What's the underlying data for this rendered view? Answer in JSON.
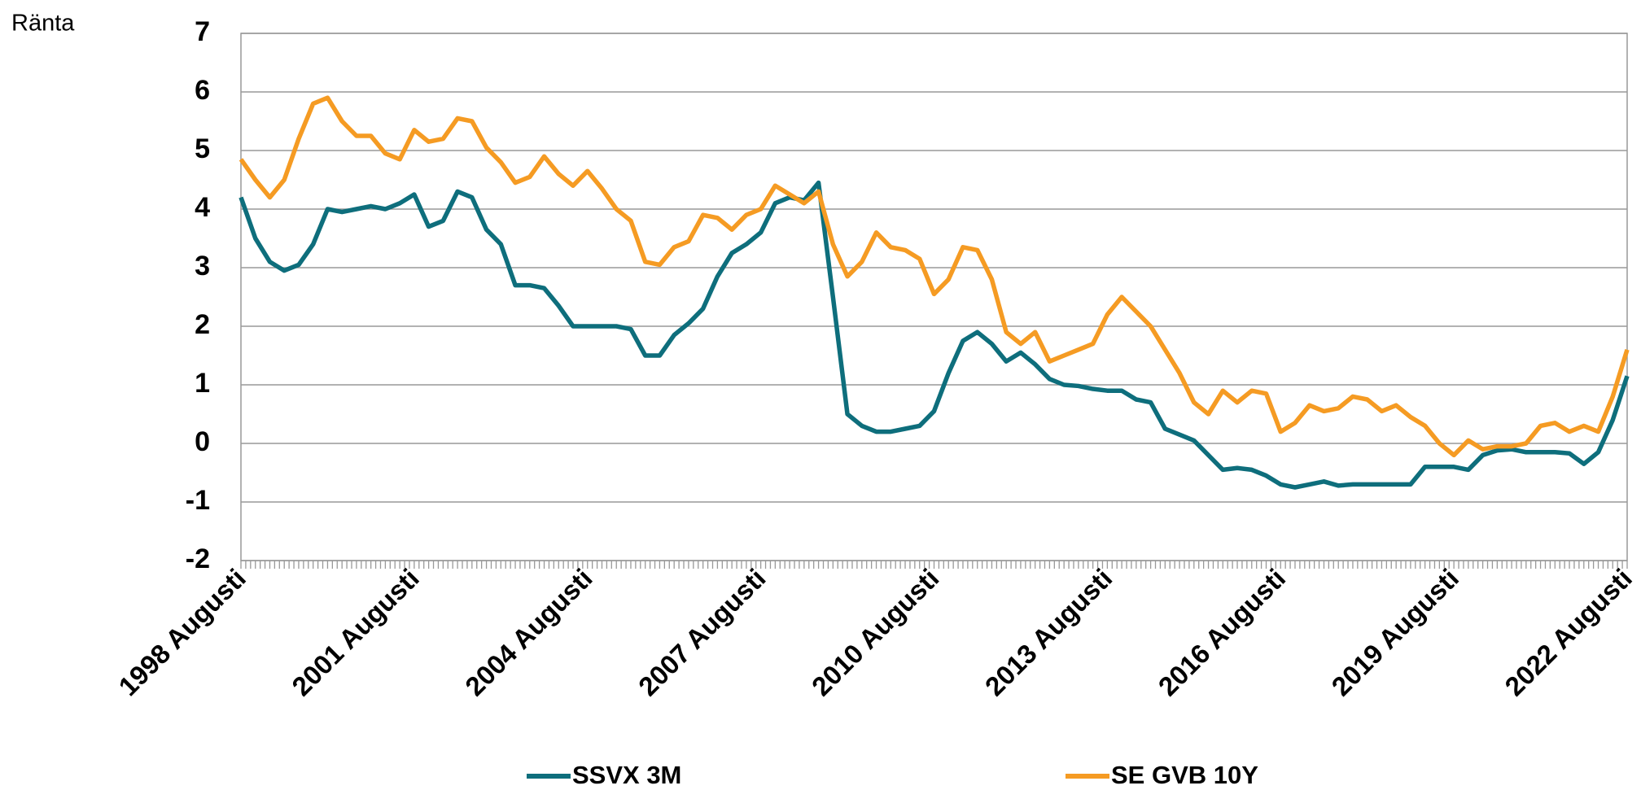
{
  "chart_data": {
    "type": "line",
    "y_label": "Ränta",
    "categories": [
      "1998 Augusti",
      null,
      null,
      null,
      null,
      null,
      null,
      null,
      null,
      null,
      null,
      null,
      "2001 Augusti",
      null,
      null,
      null,
      null,
      null,
      null,
      null,
      null,
      null,
      null,
      null,
      "2004 Augusti",
      null,
      null,
      null,
      null,
      null,
      null,
      null,
      null,
      null,
      null,
      null,
      "2007 Augusti",
      null,
      null,
      null,
      null,
      null,
      null,
      null,
      null,
      null,
      null,
      null,
      "2010 Augusti",
      null,
      null,
      null,
      null,
      null,
      null,
      null,
      null,
      null,
      null,
      null,
      "2013 Augusti",
      null,
      null,
      null,
      null,
      null,
      null,
      null,
      null,
      null,
      null,
      null,
      "2016 Augusti",
      null,
      null,
      null,
      null,
      null,
      null,
      null,
      null,
      null,
      null,
      null,
      "2019 Augusti",
      null,
      null,
      null,
      null,
      null,
      null,
      null,
      null,
      null,
      null,
      null,
      "2022 Augusti"
    ],
    "series": [
      {
        "name": "SSVX 3M",
        "color": "#0e6e7c",
        "values": [
          4.2,
          3.5,
          3.1,
          2.95,
          3.05,
          3.4,
          4.0,
          3.95,
          4.0,
          4.05,
          4.0,
          4.1,
          4.25,
          3.7,
          3.8,
          4.3,
          4.2,
          3.65,
          3.4,
          2.7,
          2.7,
          2.65,
          2.35,
          2.0,
          2.0,
          2.0,
          2.0,
          1.95,
          1.5,
          1.5,
          1.85,
          2.05,
          2.3,
          2.85,
          3.25,
          3.4,
          3.6,
          4.1,
          4.2,
          4.15,
          4.45,
          2.5,
          0.5,
          0.3,
          0.2,
          0.2,
          0.25,
          0.3,
          0.55,
          1.2,
          1.75,
          1.9,
          1.7,
          1.4,
          1.55,
          1.35,
          1.1,
          1.0,
          0.98,
          0.93,
          0.9,
          0.9,
          0.75,
          0.7,
          0.25,
          0.15,
          0.05,
          -0.2,
          -0.45,
          -0.42,
          -0.45,
          -0.55,
          -0.7,
          -0.75,
          -0.7,
          -0.65,
          -0.72,
          -0.7,
          -0.7,
          -0.7,
          -0.7,
          -0.7,
          -0.4,
          -0.4,
          -0.4,
          -0.45,
          -0.2,
          -0.12,
          -0.1,
          -0.15,
          -0.15,
          -0.15,
          -0.17,
          -0.35,
          -0.15,
          0.4,
          1.15
        ]
      },
      {
        "name": "SE GVB 10Y",
        "color": "#f59b23",
        "values": [
          4.85,
          4.5,
          4.2,
          4.5,
          5.2,
          5.8,
          5.9,
          5.5,
          5.25,
          5.25,
          4.95,
          4.85,
          5.35,
          5.15,
          5.2,
          5.55,
          5.5,
          5.05,
          4.8,
          4.45,
          4.55,
          4.9,
          4.6,
          4.4,
          4.65,
          4.35,
          4.0,
          3.8,
          3.1,
          3.05,
          3.35,
          3.45,
          3.9,
          3.85,
          3.65,
          3.9,
          4.0,
          4.4,
          4.25,
          4.1,
          4.3,
          3.4,
          2.85,
          3.1,
          3.6,
          3.35,
          3.3,
          3.15,
          2.55,
          2.8,
          3.35,
          3.3,
          2.8,
          1.9,
          1.7,
          1.9,
          1.4,
          1.5,
          1.6,
          1.7,
          2.2,
          2.5,
          2.25,
          2.0,
          1.6,
          1.2,
          0.7,
          0.5,
          0.9,
          0.7,
          0.9,
          0.85,
          0.2,
          0.35,
          0.65,
          0.55,
          0.6,
          0.8,
          0.75,
          0.55,
          0.65,
          0.45,
          0.3,
          0.0,
          -0.2,
          0.05,
          -0.1,
          -0.05,
          -0.05,
          0.0,
          0.3,
          0.35,
          0.2,
          0.3,
          0.2,
          0.8,
          1.6
        ]
      }
    ],
    "ylim": [
      -2,
      7
    ],
    "yticks": [
      -2,
      -1,
      0,
      1,
      2,
      3,
      4,
      5,
      6,
      7
    ],
    "grid": true
  }
}
